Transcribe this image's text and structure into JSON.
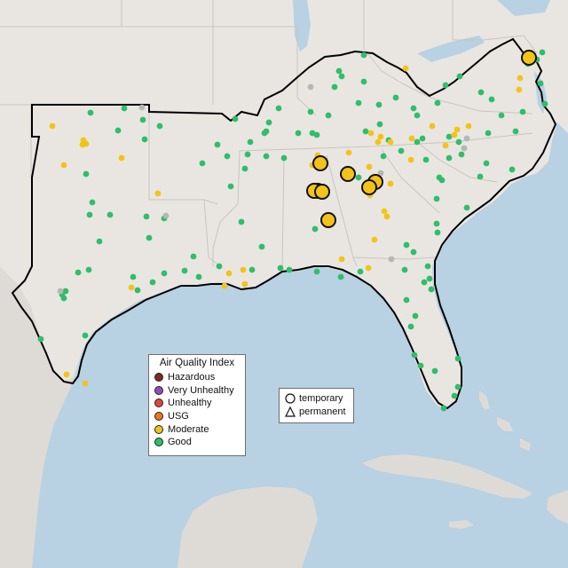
{
  "legend": {
    "title": "Air Quality Index",
    "categories": [
      {
        "label": "Hazardous",
        "color": "#7e2b25"
      },
      {
        "label": "Very Unhealthy",
        "color": "#8f4bbd"
      },
      {
        "label": "Unhealthy",
        "color": "#e1463b"
      },
      {
        "label": "USG",
        "color": "#e8791a"
      },
      {
        "label": "Moderate",
        "color": "#f3c318"
      },
      {
        "label": "Good",
        "color": "#2fbe6a"
      }
    ]
  },
  "monitor_legend": {
    "items": [
      {
        "label": "temporary",
        "shape": "circle-outline-icon"
      },
      {
        "label": "permanent",
        "shape": "triangle-outline-icon"
      }
    ]
  },
  "colors": {
    "water": "#b8d1e3",
    "land": "#e9e6e2",
    "land_foreign": "#dedbd6",
    "boundary": "#c9c4bd",
    "region_outline": "#000000",
    "good": "#2fbe6a",
    "moderate": "#f3c318",
    "no_data": "#b6b6b6"
  },
  "map_data": {
    "large_temporary_moderate_count": 9,
    "small_monitor_categories_shown": [
      "Good",
      "Moderate",
      "no data"
    ]
  }
}
